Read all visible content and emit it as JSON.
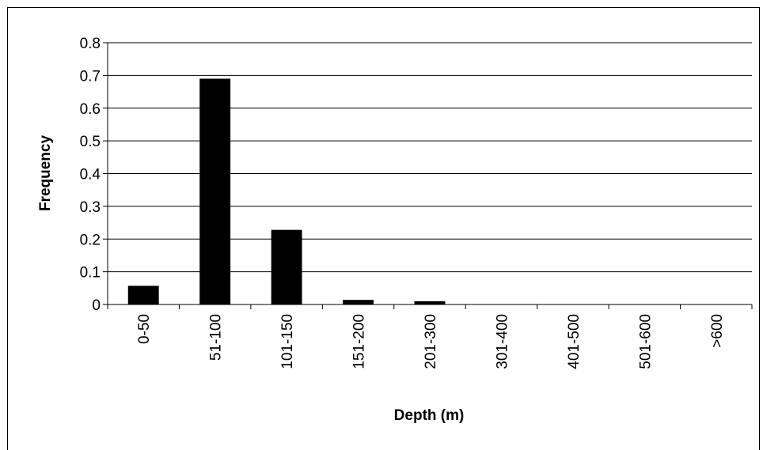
{
  "chart_data": {
    "type": "bar",
    "title": "",
    "xlabel": "Depth (m)",
    "ylabel": "Frequency",
    "categories": [
      "0-50",
      "51-100",
      "101-150",
      "151-200",
      "201-300",
      "301-400",
      "401-500",
      "501-600",
      ">600"
    ],
    "values": [
      0.057,
      0.69,
      0.228,
      0.014,
      0.01,
      0.0,
      0.0,
      0.0,
      0.0
    ],
    "ylim": [
      0,
      0.8
    ],
    "yticks": [
      "0",
      "0.1",
      "0.2",
      "0.3",
      "0.4",
      "0.5",
      "0.6",
      "0.7",
      "0.8"
    ],
    "grid": "horizontal",
    "legend": "none",
    "bar_color": "#000000"
  }
}
